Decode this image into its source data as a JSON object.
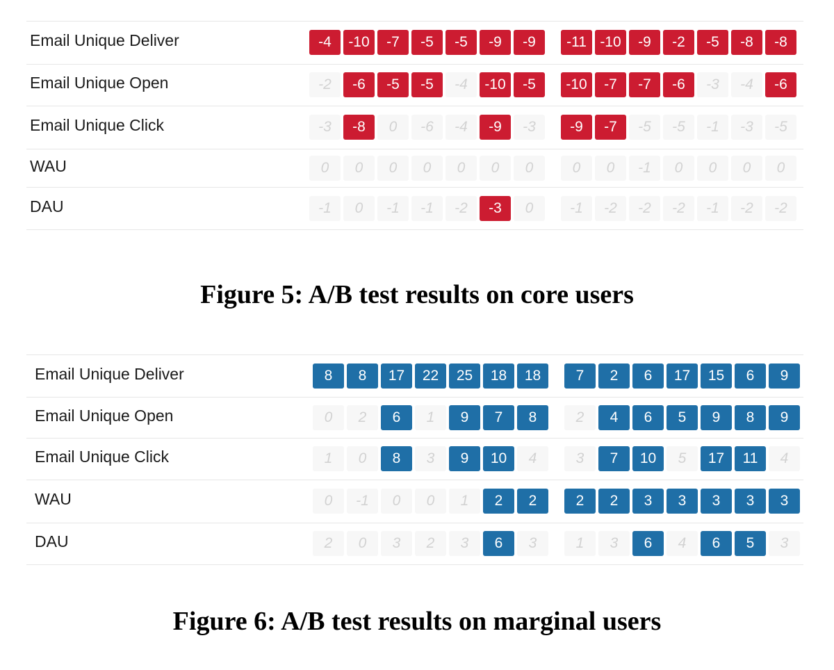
{
  "chart_data": [
    {
      "type": "table",
      "title": "Figure 5: A/B test results on core users",
      "cell_colors": {
        "significant": "#cc1c31",
        "insignificant_bg": "#f7f7f7",
        "insignificant_text": "#d2d2d2"
      },
      "rows": [
        {
          "label": "Email Unique Deliver",
          "groups": [
            [
              -4,
              -10,
              -7,
              -5,
              -5,
              -9,
              -9
            ],
            [
              -11,
              -10,
              -9,
              -2,
              -5,
              -8,
              -8
            ]
          ],
          "significant": [
            [
              1,
              1,
              1,
              1,
              1,
              1,
              1
            ],
            [
              1,
              1,
              1,
              1,
              1,
              1,
              1
            ]
          ]
        },
        {
          "label": "Email Unique Open",
          "groups": [
            [
              -2,
              -6,
              -5,
              -5,
              -4,
              -10,
              -5
            ],
            [
              -10,
              -7,
              -7,
              -6,
              -3,
              -4,
              -6
            ]
          ],
          "significant": [
            [
              0,
              1,
              1,
              1,
              0,
              1,
              1
            ],
            [
              1,
              1,
              1,
              1,
              0,
              0,
              1
            ]
          ]
        },
        {
          "label": "Email Unique Click",
          "groups": [
            [
              -3,
              -8,
              0,
              -6,
              -4,
              -9,
              -3
            ],
            [
              -9,
              -7,
              -5,
              -5,
              -1,
              -3,
              -5
            ]
          ],
          "significant": [
            [
              0,
              1,
              0,
              0,
              0,
              1,
              0
            ],
            [
              1,
              1,
              0,
              0,
              0,
              0,
              0
            ]
          ]
        },
        {
          "label": "WAU",
          "groups": [
            [
              0,
              0,
              0,
              0,
              0,
              0,
              0
            ],
            [
              0,
              0,
              -1,
              0,
              0,
              0,
              0
            ]
          ],
          "significant": [
            [
              0,
              0,
              0,
              0,
              0,
              0,
              0
            ],
            [
              0,
              0,
              0,
              0,
              0,
              0,
              0
            ]
          ]
        },
        {
          "label": "DAU",
          "groups": [
            [
              -1,
              0,
              -1,
              -1,
              -2,
              -3,
              0
            ],
            [
              -1,
              -2,
              -2,
              -2,
              -1,
              -2,
              -2
            ]
          ],
          "significant": [
            [
              0,
              0,
              0,
              0,
              0,
              1,
              0
            ],
            [
              0,
              0,
              0,
              0,
              0,
              0,
              0
            ]
          ]
        }
      ]
    },
    {
      "type": "table",
      "title": "Figure 6: A/B test results on marginal users",
      "cell_colors": {
        "significant": "#1f6fa7",
        "insignificant_bg": "#f7f7f7",
        "insignificant_text": "#d2d2d2"
      },
      "rows": [
        {
          "label": "Email Unique Deliver",
          "groups": [
            [
              8,
              8,
              17,
              22,
              25,
              18,
              18
            ],
            [
              7,
              2,
              6,
              17,
              15,
              6,
              9
            ]
          ],
          "significant": [
            [
              1,
              1,
              1,
              1,
              1,
              1,
              1
            ],
            [
              1,
              1,
              1,
              1,
              1,
              1,
              1
            ]
          ]
        },
        {
          "label": "Email Unique Open",
          "groups": [
            [
              0,
              2,
              6,
              1,
              9,
              7,
              8
            ],
            [
              2,
              4,
              6,
              5,
              9,
              8,
              9
            ]
          ],
          "significant": [
            [
              0,
              0,
              1,
              0,
              1,
              1,
              1
            ],
            [
              0,
              1,
              1,
              1,
              1,
              1,
              1
            ]
          ]
        },
        {
          "label": "Email Unique Click",
          "groups": [
            [
              1,
              0,
              8,
              3,
              9,
              10,
              4
            ],
            [
              3,
              7,
              10,
              5,
              17,
              11,
              4
            ]
          ],
          "significant": [
            [
              0,
              0,
              1,
              0,
              1,
              1,
              0
            ],
            [
              0,
              1,
              1,
              0,
              1,
              1,
              0
            ]
          ]
        },
        {
          "label": "WAU",
          "groups": [
            [
              0,
              -1,
              0,
              0,
              1,
              2,
              2
            ],
            [
              2,
              2,
              3,
              3,
              3,
              3,
              3
            ]
          ],
          "significant": [
            [
              0,
              0,
              0,
              0,
              0,
              1,
              1
            ],
            [
              1,
              1,
              1,
              1,
              1,
              1,
              1
            ]
          ]
        },
        {
          "label": "DAU",
          "groups": [
            [
              2,
              0,
              3,
              2,
              3,
              6,
              3
            ],
            [
              1,
              3,
              6,
              4,
              6,
              5,
              3
            ]
          ],
          "significant": [
            [
              0,
              0,
              0,
              0,
              0,
              1,
              0
            ],
            [
              0,
              0,
              1,
              0,
              1,
              1,
              0
            ]
          ]
        }
      ]
    }
  ]
}
